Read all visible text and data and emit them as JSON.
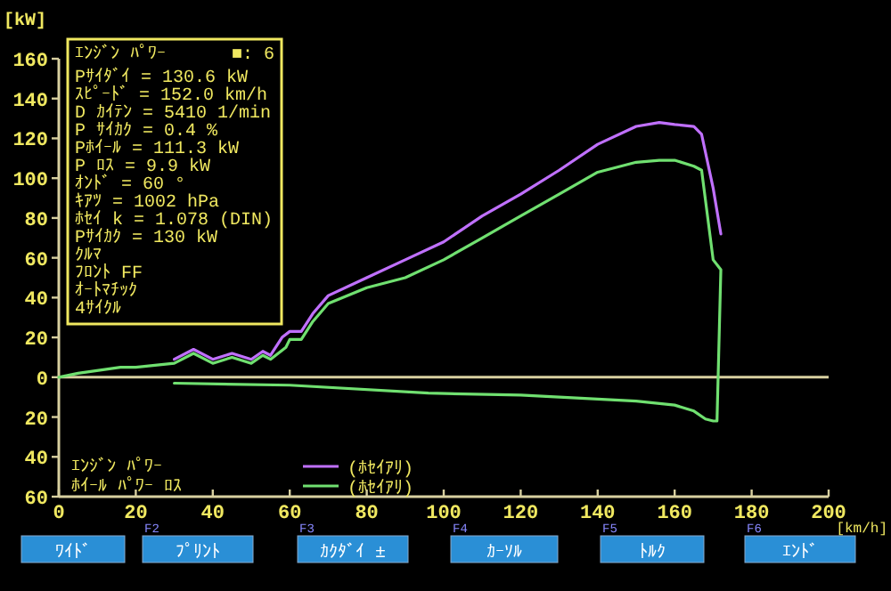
{
  "chart_data": {
    "type": "line",
    "title": "ｴﾝｼﾞﾝ ﾊﾟﾜｰ",
    "xlabel": "[km/h]",
    "ylabel": "[kW]",
    "xlim": [
      0,
      200
    ],
    "ylim": [
      -60,
      160
    ],
    "xticks": [
      0,
      20,
      40,
      60,
      80,
      100,
      120,
      140,
      160,
      180,
      200
    ],
    "yticks": [
      160,
      140,
      120,
      100,
      80,
      60,
      40,
      20,
      0,
      {
        "value": -20,
        "label": "20"
      },
      {
        "value": -40,
        "label": "40"
      },
      {
        "value": -60,
        "label": "60"
      }
    ],
    "legend": "bottom",
    "ref_lines": [
      {
        "axis": "y",
        "value": 0,
        "color": "#d8d0a0"
      }
    ],
    "series": [
      {
        "name": "(ﾎｾｲｱﾘ)",
        "color": "#c070ff",
        "x": [
          30,
          35,
          40,
          45,
          50,
          53,
          55,
          58,
          60,
          63,
          66,
          70,
          80,
          90,
          100,
          110,
          120,
          130,
          140,
          150,
          156,
          160,
          165,
          167,
          170,
          172
        ],
        "values": [
          9,
          14,
          9,
          12,
          9,
          13,
          11,
          20,
          23,
          23,
          32,
          41,
          50,
          59,
          68,
          81,
          92,
          104,
          117,
          126,
          128,
          127,
          126,
          122,
          95,
          72
        ]
      },
      {
        "name": "(ﾎｾｲｱﾘ)",
        "color": "#70e070",
        "x": [
          0,
          5,
          16,
          20,
          30,
          35,
          40,
          45,
          50,
          53,
          55,
          59,
          60,
          63,
          66,
          70,
          80,
          90,
          100,
          110,
          120,
          130,
          140,
          150,
          156,
          160,
          165,
          167,
          170,
          172,
          171,
          170,
          168,
          165,
          160,
          150,
          140,
          120,
          96,
          60,
          30
        ],
        "values": [
          0,
          2,
          5,
          5,
          7,
          12,
          7,
          10,
          7,
          11,
          9,
          15,
          19,
          19,
          28,
          37,
          45,
          50,
          59,
          70,
          81,
          92,
          103,
          108,
          109,
          109,
          106,
          104,
          59,
          54,
          -22,
          -22,
          -21,
          -17,
          -14,
          -12,
          -11,
          -9,
          -8,
          -4,
          -3
        ]
      }
    ],
    "annotations": [
      "■: 6",
      "Pｻｲﾀﾞｲ = 130.6 kW",
      "ｽﾋﾟｰﾄﾞ = 152.0 km/h",
      "D ｶｲﾃﾝ = 5410 1/min",
      "P ｻｲｶｸ = 0.4 %",
      "Pﾎｲｰﾙ = 111.3 kW",
      "P ﾛｽ  = 9.9 kW",
      "ｵﾝﾄﾞ  = 60 °",
      "ｷｱﾂ  = 1002 hPa",
      "ﾎｾｲ k = 1.078 (DIN)",
      "Pｻｲｶｸ = 130 kW",
      "ｸﾙﾏ",
      "ﾌﾛﾝﾄ FF",
      "ｵｰﾄﾏﾁｯｸ",
      "4ｻｲｸﾙ",
      "ｴﾝｼﾞﾝ ﾊﾟﾜｰ",
      "ﾎｲｰﾙ ﾊﾟﾜｰ ﾛｽ",
      "ﾜｲﾄﾞ",
      "ﾌﾟﾘﾝﾄ",
      "ｶｸﾀﾞｲ ±",
      "ｶｰｿﾙ",
      "ﾄﾙｸ",
      "ｴﾝﾄﾞ",
      "F2",
      "F3",
      "F4",
      "F5",
      "F6"
    ]
  }
}
